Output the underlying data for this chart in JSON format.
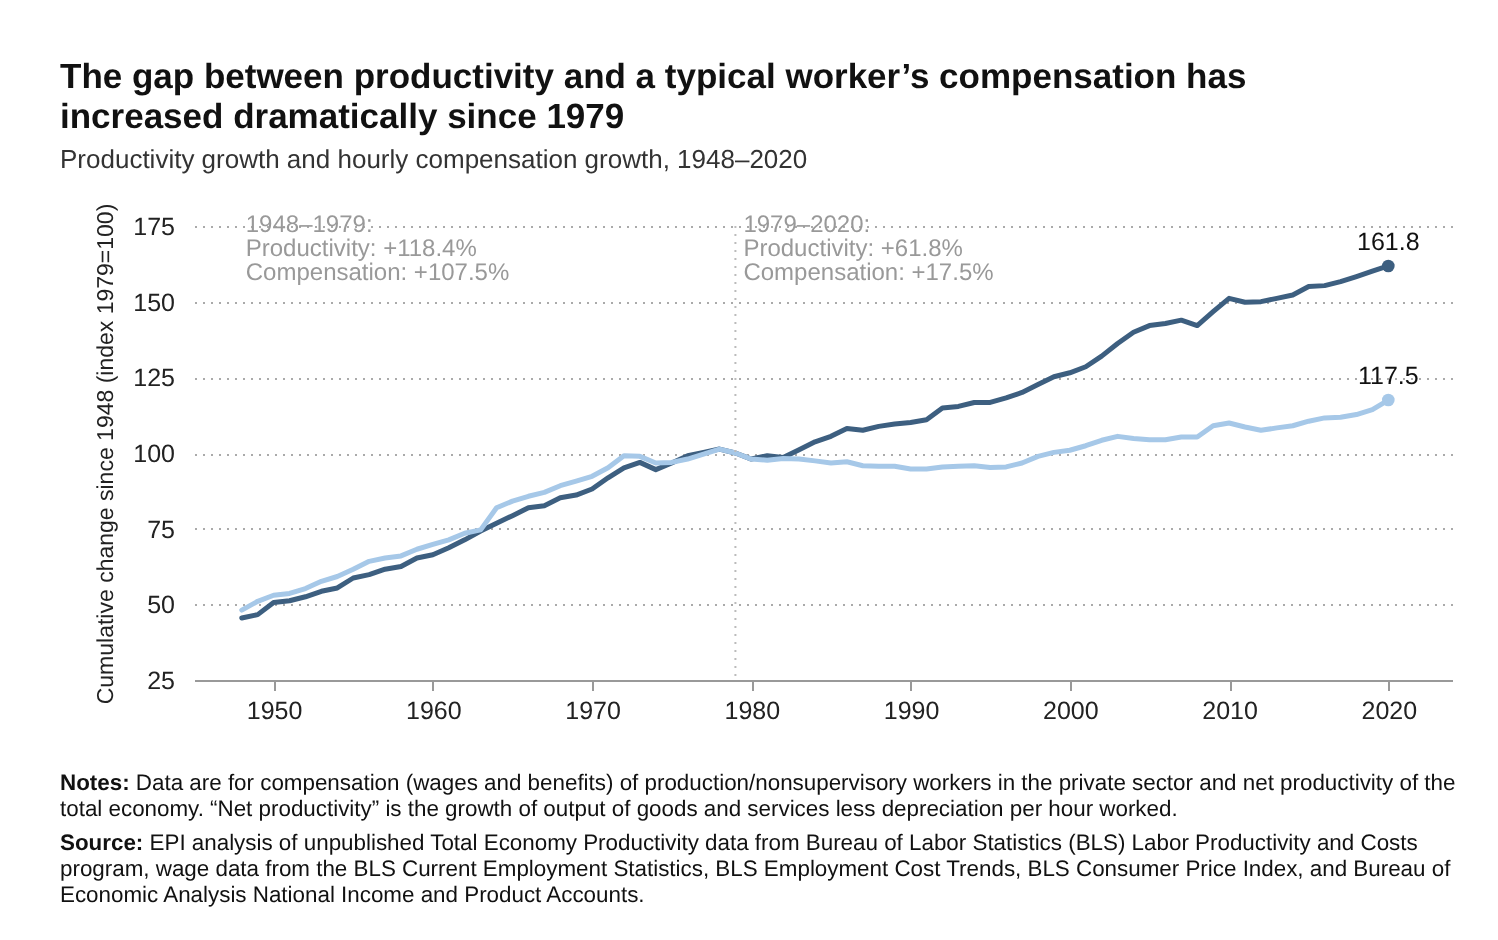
{
  "chart_data": {
    "type": "line",
    "title": "The gap between productivity and a typical worker’s compensation has increased dramatically since 1979",
    "subtitle": "Productivity growth and hourly compensation growth, 1948–2020",
    "ylabel": "Cumulative change since 1948 (index 1979=100)",
    "x": [
      1948,
      1949,
      1950,
      1951,
      1952,
      1953,
      1954,
      1955,
      1956,
      1957,
      1958,
      1959,
      1960,
      1961,
      1962,
      1963,
      1964,
      1965,
      1966,
      1967,
      1968,
      1969,
      1970,
      1971,
      1972,
      1973,
      1974,
      1975,
      1976,
      1977,
      1978,
      1979,
      1980,
      1981,
      1982,
      1983,
      1984,
      1985,
      1986,
      1987,
      1988,
      1989,
      1990,
      1991,
      1992,
      1993,
      1994,
      1995,
      1996,
      1997,
      1998,
      1999,
      2000,
      2001,
      2002,
      2003,
      2004,
      2005,
      2006,
      2007,
      2008,
      2009,
      2010,
      2011,
      2012,
      2013,
      2014,
      2015,
      2016,
      2017,
      2018,
      2019,
      2020
    ],
    "series": [
      {
        "color": "#3d5f80",
        "values": [
          45.5,
          46.6,
          50.6,
          51.2,
          52.5,
          54.3,
          55.4,
          58.7,
          59.8,
          61.6,
          62.5,
          65.3,
          66.4,
          68.7,
          71.3,
          74.2,
          76.8,
          79.3,
          81.9,
          82.6,
          85.2,
          86.1,
          88.1,
          91.8,
          95.1,
          96.9,
          94.5,
          96.7,
          99.1,
          100.2,
          101.3,
          100,
          98,
          99.1,
          98.5,
          101.1,
          103.7,
          105.5,
          108.1,
          107.5,
          108.8,
          109.6,
          110.1,
          111,
          114.9,
          115.4,
          116.7,
          116.7,
          118.2,
          120,
          122.6,
          125.2,
          126.5,
          128.5,
          132,
          136.2,
          139.9,
          142.1,
          142.8,
          143.9,
          142.1,
          146.7,
          151.1,
          149.8,
          150,
          151.1,
          152.2,
          155,
          155.3,
          156.6,
          158.3,
          160.1,
          161.8
        ],
        "value_labels": [
          null,
          null,
          null,
          null,
          null,
          null,
          null,
          null,
          null,
          null,
          null,
          null,
          null,
          null,
          null,
          null,
          null,
          null,
          null,
          null,
          null,
          null,
          null,
          null,
          null,
          null,
          null,
          null,
          null,
          null,
          null,
          null,
          null,
          null,
          null,
          null,
          null,
          null,
          null,
          null,
          null,
          null,
          null,
          null,
          null,
          null,
          null,
          null,
          null,
          null,
          null,
          null,
          null,
          null,
          null,
          null,
          null,
          null,
          null,
          null,
          null,
          null,
          null,
          null,
          null,
          null,
          null,
          null,
          null,
          null,
          null,
          null,
          "161.8"
        ]
      },
      {
        "color": "#a6c8e8",
        "values": [
          48.1,
          51,
          53,
          53.6,
          55.2,
          57.6,
          59.2,
          61.6,
          64.2,
          65.3,
          66,
          68.2,
          69.8,
          71.3,
          73.5,
          74.6,
          81.9,
          84.1,
          85.7,
          87,
          89.2,
          90.7,
          92.3,
          95.1,
          99.1,
          98.9,
          96.7,
          96.9,
          98,
          99.6,
          101.3,
          100,
          98,
          97.6,
          98.2,
          98,
          97.4,
          96.7,
          97.1,
          95.8,
          95.6,
          95.6,
          94.7,
          94.7,
          95.4,
          95.6,
          95.8,
          95.2,
          95.4,
          96.7,
          98.9,
          100.2,
          100.9,
          102.4,
          104.2,
          105.5,
          104.8,
          104.4,
          104.4,
          105.3,
          105.3,
          109,
          109.9,
          108.6,
          107.5,
          108.3,
          109,
          110.5,
          111.6,
          111.8,
          112.7,
          114.3,
          117.5
        ],
        "value_labels": [
          null,
          null,
          null,
          null,
          null,
          null,
          null,
          null,
          null,
          null,
          null,
          null,
          null,
          null,
          null,
          null,
          null,
          null,
          null,
          null,
          null,
          null,
          null,
          null,
          null,
          null,
          null,
          null,
          null,
          null,
          null,
          null,
          null,
          null,
          null,
          null,
          null,
          null,
          null,
          null,
          null,
          null,
          null,
          null,
          null,
          null,
          null,
          null,
          null,
          null,
          null,
          null,
          null,
          null,
          null,
          null,
          null,
          null,
          null,
          null,
          null,
          null,
          null,
          null,
          null,
          null,
          null,
          null,
          null,
          null,
          null,
          null,
          "117.5"
        ]
      }
    ],
    "xlim": [
      1945,
      2024
    ],
    "xticks": [
      1950,
      1960,
      1970,
      1980,
      1990,
      2000,
      2010,
      2020
    ],
    "ylim": [
      25,
      175
    ],
    "yticks": [
      25,
      50,
      75,
      100,
      125,
      150,
      175
    ],
    "grid": "y",
    "legend": false,
    "marker": "none",
    "line_style": "solid",
    "ref_lines": [
      {
        "axis": "x",
        "value": 1979,
        "color": "#bbbbbb",
        "line_style": "dotted"
      }
    ],
    "annotations": [
      "1948–1979:\nProductivity: +118.4%\nCompensation: +107.5%",
      "1979–2020:\nProductivity: +61.8%\nCompensation: +17.5%",
      "Notes: Data are for compensation (wages and benefits) of production/nonsupervisory workers in the private sector and net productivity of the total economy. “Net productivity” is the growth of output of goods and services less depreciation per hour worked.",
      "Source: EPI analysis of unpublished Total Economy Productivity data from Bureau of Labor Statistics (BLS) Labor Productivity and Costs program, wage data from the BLS Current Employment Statistics, BLS Employment Cost Trends, BLS Consumer Price Index, and Bureau of Economic Analysis National Income and Product Accounts."
    ]
  }
}
